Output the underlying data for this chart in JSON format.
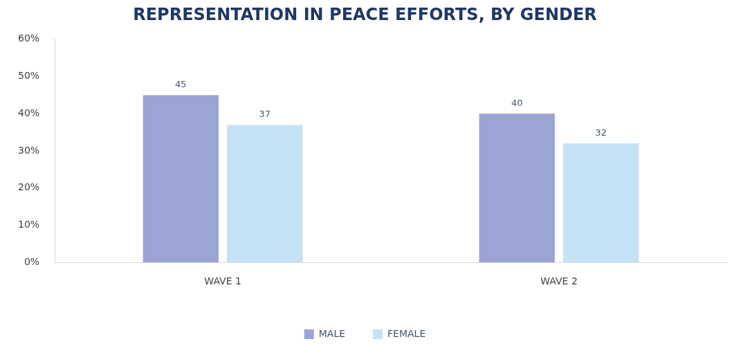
{
  "chart_data": {
    "type": "bar",
    "title": "REPRESENTATION IN PEACE EFFORTS, BY GENDER",
    "categories": [
      "WAVE 1",
      "WAVE 2"
    ],
    "series": [
      {
        "name": "MALE",
        "color": "#9aa5d3",
        "values": [
          45,
          40
        ]
      },
      {
        "name": "FEMALE",
        "color": "#c5e2f6",
        "values": [
          37,
          32
        ]
      }
    ],
    "ylim": [
      0,
      60
    ],
    "yticks": [
      {
        "value": 0,
        "label": "0%"
      },
      {
        "value": 10,
        "label": "10%"
      },
      {
        "value": 20,
        "label": "20%"
      },
      {
        "value": 30,
        "label": "30%"
      },
      {
        "value": 40,
        "label": "40%"
      },
      {
        "value": 50,
        "label": "50%"
      },
      {
        "value": 60,
        "label": "60%"
      }
    ],
    "grid": false,
    "legend": "bottom",
    "data_labels": true
  }
}
